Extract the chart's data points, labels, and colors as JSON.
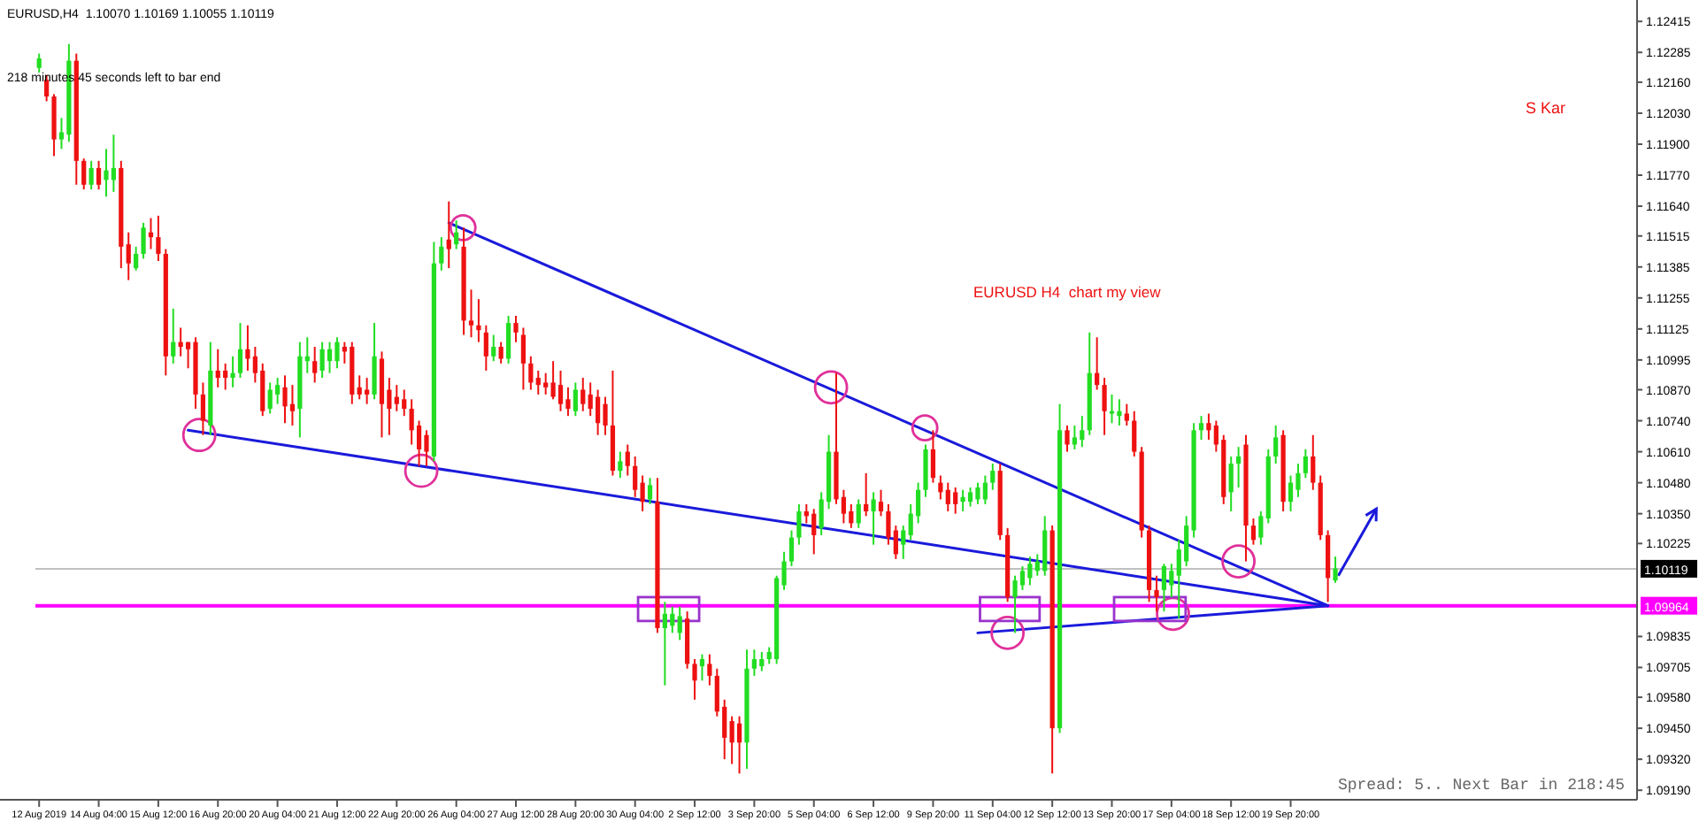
{
  "chart_data": {
    "type": "candlestick",
    "annotations": [
      "EURUSD,H4  1.10070 1.10169 1.10055 1.10119",
      "218 minutes 45 seconds left to bar end",
      "EURUSD H4  chart my view",
      "S Kar",
      "Spread: 5.. Next Bar in 218:45"
    ],
    "categories": [
      "12 Aug 2019",
      null,
      null,
      null,
      null,
      null,
      null,
      null,
      "14 Aug 04:00",
      null,
      null,
      null,
      null,
      null,
      null,
      null,
      "15 Aug 12:00",
      null,
      null,
      null,
      null,
      null,
      null,
      null,
      "16 Aug 20:00",
      null,
      null,
      null,
      null,
      null,
      null,
      null,
      "20 Aug 04:00",
      null,
      null,
      null,
      null,
      null,
      null,
      null,
      "21 Aug 12:00",
      null,
      null,
      null,
      null,
      null,
      null,
      null,
      "22 Aug 20:00",
      null,
      null,
      null,
      null,
      null,
      null,
      null,
      "26 Aug 04:00",
      null,
      null,
      null,
      null,
      null,
      null,
      null,
      "27 Aug 12:00",
      null,
      null,
      null,
      null,
      null,
      null,
      null,
      "28 Aug 20:00",
      null,
      null,
      null,
      null,
      null,
      null,
      null,
      "30 Aug 04:00",
      null,
      null,
      null,
      null,
      null,
      null,
      null,
      "2 Sep 12:00",
      null,
      null,
      null,
      null,
      null,
      null,
      null,
      "3 Sep 20:00",
      null,
      null,
      null,
      null,
      null,
      null,
      null,
      "5 Sep 04:00",
      null,
      null,
      null,
      null,
      null,
      null,
      null,
      "6 Sep 12:00",
      null,
      null,
      null,
      null,
      null,
      null,
      null,
      "9 Sep 20:00",
      null,
      null,
      null,
      null,
      null,
      null,
      null,
      "11 Sep 04:00",
      null,
      null,
      null,
      null,
      null,
      null,
      null,
      "12 Sep 12:00",
      null,
      null,
      null,
      null,
      null,
      null,
      null,
      "13 Sep 20:00",
      null,
      null,
      null,
      null,
      null,
      null,
      null,
      "17 Sep 04:00",
      null,
      null,
      null,
      null,
      null,
      null,
      null,
      "18 Sep 12:00",
      null,
      null,
      null,
      null,
      null,
      null,
      null,
      "19 Sep 20:00",
      null,
      null,
      null,
      null,
      null,
      null,
      null,
      null,
      null,
      null,
      null,
      null,
      null,
      null,
      null,
      null,
      null,
      null,
      null,
      null,
      null,
      null,
      null,
      null,
      null,
      null,
      null,
      null,
      null,
      null,
      null,
      null,
      null,
      null,
      null,
      null,
      null,
      null,
      null,
      null,
      null,
      null,
      null,
      null,
      null,
      null
    ],
    "ylim": [
      1.0915,
      1.1249
    ],
    "yticks": [
      1.12415,
      1.12285,
      {
        "value": 1.1216,
        "label": "1.12160"
      },
      {
        "value": 1.1203,
        "label": "1.12030"
      },
      {
        "value": 1.119,
        "label": "1.11900"
      },
      {
        "value": 1.1177,
        "label": "1.11770"
      },
      {
        "value": 1.1164,
        "label": "1.11640"
      },
      1.11515,
      1.11385,
      1.11255,
      1.11125,
      1.10995,
      {
        "value": 1.1087,
        "label": "1.10870"
      },
      {
        "value": 1.1074,
        "label": "1.10740"
      },
      {
        "value": 1.1061,
        "label": "1.10610"
      },
      {
        "value": 1.1048,
        "label": "1.10480"
      },
      {
        "value": 1.1035,
        "label": "1.10350"
      },
      1.10225,
      1.09835,
      1.09705,
      {
        "value": 1.0958,
        "label": "1.09580"
      },
      {
        "value": 1.0945,
        "label": "1.09450"
      },
      {
        "value": 1.0932,
        "label": "1.09320"
      },
      {
        "value": 1.0919,
        "label": "1.09190"
      }
    ],
    "ref_lines": [
      {
        "axis": "y",
        "value": 1.10119,
        "label": "1.10119",
        "color": "#c0c0c0"
      },
      {
        "axis": "y",
        "value": 1.09964,
        "label": "1.09964",
        "color": "#ff00ff"
      }
    ],
    "series": [
      {
        "colors": [
          "#22dd22",
          "#ee1111",
          "#ee1111",
          "#22dd22",
          "#22dd22",
          "#ee1111",
          "#ee1111",
          "#22dd22",
          "#ee1111",
          "#22dd22",
          "#22dd22",
          "#ee1111",
          "#ee1111",
          "#22dd22",
          "#22dd22",
          "#ee1111",
          "#ee1111",
          "#ee1111",
          "#22dd22",
          "#ee1111",
          "#ee1111",
          "#ee1111",
          "#ee1111",
          "#22dd22",
          "#ee1111",
          "#ee1111",
          "#22dd22",
          "#22dd22",
          "#ee1111",
          "#ee1111",
          "#ee1111",
          "#22dd22",
          "#22dd22",
          "#ee1111",
          "#ee1111",
          "#22dd22",
          "#22dd22",
          "#ee1111",
          "#22dd22",
          "#22dd22",
          "#22dd22",
          "#ee1111",
          "#ee1111",
          "#ee1111",
          "#ee1111",
          "#22dd22",
          "#ee1111",
          "#ee1111",
          "#ee1111",
          "#ee1111",
          "#ee1111",
          "#ee1111",
          "#ee1111",
          "#22dd22",
          "#22dd22",
          "#ee1111",
          "#22dd22",
          "#ee1111",
          "#ee1111",
          "#ee1111",
          "#ee1111",
          "#22dd22",
          "#ee1111",
          "#22dd22",
          "#ee1111",
          "#ee1111",
          "#ee1111",
          "#ee1111",
          "#ee1111",
          "#ee1111",
          "#ee1111",
          "#ee1111",
          "#22dd22",
          "#ee1111",
          "#ee1111",
          "#ee1111",
          "#ee1111",
          "#ee1111",
          "#22dd22",
          "#ee1111",
          "#ee1111",
          "#ee1111",
          "#22dd22",
          "#ee1111",
          "#22dd22",
          "#22dd22",
          "#22dd22",
          "#ee1111",
          "#ee1111",
          "#22dd22",
          "#ee1111",
          "#ee1111",
          "#ee1111",
          "#ee1111",
          "#ee1111",
          "#22dd22",
          "#22dd22",
          "#22dd22",
          "#22dd22",
          "#22dd22",
          "#22dd22",
          "#22dd22",
          "#22dd22",
          "#ee1111",
          "#ee1111",
          "#22dd22",
          "#22dd22",
          "#ee1111",
          "#ee1111",
          "#ee1111",
          "#22dd22",
          "#ee1111",
          "#22dd22",
          "#ee1111",
          "#ee1111",
          "#ee1111",
          "#22dd22",
          "#22dd22",
          "#22dd22",
          "#22dd22",
          "#ee1111",
          "#ee1111",
          "#ee1111",
          "#ee1111",
          "#22dd22",
          "#22dd22",
          "#22dd22",
          "#22dd22",
          "#22dd22",
          "#ee1111",
          "#ee1111",
          "#22dd22",
          "#22dd22",
          "#22dd22",
          "#22dd22",
          "#22dd22",
          "#ee1111",
          "#22dd22",
          "#ee1111",
          "#22dd22",
          "#22dd22",
          "#22dd22",
          "#ee1111",
          "#ee1111",
          "#22dd22",
          "#22dd22",
          "#ee1111",
          "#ee1111",
          "#ee1111",
          "#ee1111",
          "#ee1111",
          "#22dd22",
          "#22dd22",
          "#22dd22",
          "#22dd22",
          "#22dd22",
          "#22dd22",
          "#ee1111",
          "#ee1111",
          "#ee1111",
          "#22dd22",
          "#22dd22",
          "#ee1111",
          "#ee1111",
          "#22dd22",
          "#22dd22",
          "#22dd22",
          "#ee1111",
          "#22dd22",
          "#22dd22",
          "#22dd22",
          "#ee1111",
          "#ee1111",
          "#ee1111",
          "#22dd22",
          null,
          null,
          null,
          null,
          null,
          null,
          null,
          null,
          null,
          null,
          null,
          null,
          null,
          null,
          null,
          null,
          null,
          null,
          null,
          null,
          null,
          null,
          null,
          null,
          null,
          null,
          null,
          null,
          null,
          null,
          null,
          null,
          null,
          null,
          null,
          null,
          null,
          null,
          null,
          null
        ],
        "ohlc": [
          [
            1.1222,
            1.1228,
            1.122,
            1.1226
          ],
          [
            1.1217,
            1.1219,
            1.1208,
            1.121
          ],
          [
            1.121,
            1.1211,
            1.1185,
            1.1192
          ],
          [
            1.1192,
            1.1201,
            1.1188,
            1.1195
          ],
          [
            1.1194,
            1.1232,
            1.1191,
            1.1225
          ],
          [
            1.1225,
            1.1228,
            1.1173,
            1.1183
          ],
          [
            1.1183,
            1.1184,
            1.1171,
            1.1173
          ],
          [
            1.1173,
            1.1183,
            1.1171,
            1.118
          ],
          [
            1.118,
            1.1183,
            1.1171,
            1.1173
          ],
          [
            1.1175,
            1.1188,
            1.1168,
            1.1179
          ],
          [
            1.1175,
            1.1194,
            1.117,
            1.118
          ],
          [
            1.118,
            1.1183,
            1.1138,
            1.1147
          ],
          [
            1.1148,
            1.1153,
            1.1133,
            1.114
          ],
          [
            1.1138,
            1.1147,
            1.1137,
            1.1144
          ],
          [
            1.1144,
            1.1157,
            1.1142,
            1.1155
          ],
          [
            1.1153,
            1.1159,
            1.1146,
            1.1151
          ],
          [
            1.1151,
            1.116,
            1.1141,
            1.1144
          ],
          [
            1.1144,
            1.1146,
            1.1093,
            1.1101
          ],
          [
            1.1101,
            1.1121,
            1.1098,
            1.1107
          ],
          [
            1.1107,
            1.1113,
            1.1101,
            1.1105
          ],
          [
            1.1107,
            1.1107,
            1.1096,
            1.1104
          ],
          [
            1.1107,
            1.1109,
            1.1079,
            1.1085
          ],
          [
            1.1085,
            1.109,
            1.1068,
            1.1074
          ],
          [
            1.1072,
            1.1107,
            1.1068,
            1.1095
          ],
          [
            1.1095,
            1.1104,
            1.1088,
            1.1092
          ],
          [
            1.1095,
            1.1098,
            1.1087,
            1.1092
          ],
          [
            1.1092,
            1.1101,
            1.1088,
            1.1094
          ],
          [
            1.1094,
            1.1115,
            1.1092,
            1.1104
          ],
          [
            1.1104,
            1.1114,
            1.1095,
            1.11
          ],
          [
            1.1101,
            1.1105,
            1.109,
            1.1094
          ],
          [
            1.1095,
            1.1098,
            1.1076,
            1.1078
          ],
          [
            1.1079,
            1.109,
            1.1077,
            1.1087
          ],
          [
            1.1085,
            1.1092,
            1.1081,
            1.1089
          ],
          [
            1.1088,
            1.1093,
            1.1073,
            1.108
          ],
          [
            1.1081,
            1.1089,
            1.1072,
            1.1078
          ],
          [
            1.1079,
            1.1107,
            1.1067,
            1.1101
          ],
          [
            1.1099,
            1.1109,
            1.1094,
            1.1101
          ],
          [
            1.1099,
            1.1105,
            1.109,
            1.1094
          ],
          [
            1.1095,
            1.1107,
            1.1092,
            1.1104
          ],
          [
            1.1099,
            1.1107,
            1.1094,
            1.1104
          ],
          [
            1.1099,
            1.1109,
            1.1096,
            1.1107
          ],
          [
            1.1105,
            1.1107,
            1.1098,
            1.1103
          ],
          [
            1.1105,
            1.1107,
            1.1081,
            1.1085
          ],
          [
            1.1088,
            1.1093,
            1.1083,
            1.1085
          ],
          [
            1.1087,
            1.1092,
            1.1081,
            1.1085
          ],
          [
            1.1085,
            1.1115,
            1.1083,
            1.1101
          ],
          [
            1.11,
            1.1103,
            1.1067,
            1.1081
          ],
          [
            1.1087,
            1.1092,
            1.1068,
            1.1079
          ],
          [
            1.1084,
            1.1089,
            1.1078,
            1.1081
          ],
          [
            1.1083,
            1.1087,
            1.1076,
            1.1079
          ],
          [
            1.1079,
            1.1083,
            1.1064,
            1.107
          ],
          [
            1.1072,
            1.1074,
            1.1055,
            1.1062
          ],
          [
            1.1068,
            1.107,
            1.1055,
            1.1061
          ],
          [
            1.1059,
            1.1149,
            1.1057,
            1.114
          ],
          [
            1.114,
            1.1151,
            1.1137,
            1.1147
          ],
          [
            1.115,
            1.1166,
            1.1138,
            1.1146
          ],
          [
            1.1148,
            1.1158,
            1.1146,
            1.1153
          ],
          [
            1.1147,
            1.1155,
            1.111,
            1.1116
          ],
          [
            1.1116,
            1.1129,
            1.1109,
            1.1114
          ],
          [
            1.1114,
            1.1125,
            1.1107,
            1.1112
          ],
          [
            1.1111,
            1.1114,
            1.1095,
            1.1101
          ],
          [
            1.1101,
            1.111,
            1.1099,
            1.1105
          ],
          [
            1.1105,
            1.1107,
            1.1098,
            1.11
          ],
          [
            1.11,
            1.1118,
            1.1098,
            1.1115
          ],
          [
            1.1115,
            1.1118,
            1.1107,
            1.1111
          ],
          [
            1.111,
            1.1113,
            1.1087,
            1.1098
          ],
          [
            1.1098,
            1.1101,
            1.1087,
            1.109
          ],
          [
            1.1092,
            1.1095,
            1.1085,
            1.1089
          ],
          [
            1.109,
            1.1094,
            1.1085,
            1.1088
          ],
          [
            1.109,
            1.1099,
            1.1083,
            1.1084
          ],
          [
            1.1089,
            1.1095,
            1.1078,
            1.1081
          ],
          [
            1.1083,
            1.1088,
            1.1076,
            1.1079
          ],
          [
            1.1078,
            1.109,
            1.1076,
            1.1087
          ],
          [
            1.1087,
            1.1092,
            1.1078,
            1.1081
          ],
          [
            1.1085,
            1.109,
            1.1076,
            1.1079
          ],
          [
            1.1084,
            1.1087,
            1.1068,
            1.1073
          ],
          [
            1.1081,
            1.1084,
            1.1068,
            1.1072
          ],
          [
            1.1072,
            1.1095,
            1.1051,
            1.1053
          ],
          [
            1.1053,
            1.1061,
            1.105,
            1.1057
          ],
          [
            1.1061,
            1.1064,
            1.1051,
            1.1055
          ],
          [
            1.1055,
            1.1059,
            1.1042,
            1.1045
          ],
          [
            1.1048,
            1.1051,
            1.1036,
            1.104
          ],
          [
            1.1041,
            1.105,
            1.1039,
            1.1047
          ],
          [
            1.104,
            1.105,
            1.0985,
            1.0987
          ],
          [
            1.0987,
            1.0998,
            1.0963,
            1.0993
          ],
          [
            1.0988,
            1.0996,
            1.0985,
            1.0993
          ],
          [
            1.0985,
            1.0996,
            1.0982,
            1.0992
          ],
          [
            1.0991,
            1.0994,
            1.097,
            1.0972
          ],
          [
            1.0972,
            1.0974,
            1.0957,
            1.0965
          ],
          [
            1.0971,
            1.0976,
            1.0965,
            1.0974
          ],
          [
            1.0972,
            1.0976,
            1.0963,
            1.0967
          ],
          [
            1.0967,
            1.097,
            1.095,
            1.0952
          ],
          [
            1.0954,
            1.0957,
            1.0932,
            1.0941
          ],
          [
            1.0948,
            1.095,
            1.093,
            1.0939
          ],
          [
            1.0947,
            1.095,
            1.0926,
            1.0939
          ],
          [
            1.0939,
            1.0978,
            1.0928,
            1.097
          ],
          [
            1.097,
            1.0978,
            1.0967,
            1.0974
          ],
          [
            1.0971,
            1.0977,
            1.0969,
            1.0974
          ],
          [
            1.0974,
            1.0979,
            1.0972,
            1.0977
          ],
          [
            1.0974,
            1.1009,
            1.0972,
            1.1008
          ],
          [
            1.1005,
            1.1019,
            1.1003,
            1.1015
          ],
          [
            1.1015,
            1.1028,
            1.1013,
            1.1025
          ],
          [
            1.1025,
            1.1039,
            1.1022,
            1.1036
          ],
          [
            1.1036,
            1.1039,
            1.1031,
            1.1034
          ],
          [
            1.1035,
            1.1037,
            1.1018,
            1.1026
          ],
          [
            1.1029,
            1.1044,
            1.1026,
            1.1041
          ],
          [
            1.104,
            1.1068,
            1.1037,
            1.1061
          ],
          [
            1.1061,
            1.1094,
            1.1039,
            1.1041
          ],
          [
            1.1042,
            1.1045,
            1.1031,
            1.1035
          ],
          [
            1.1036,
            1.1039,
            1.1029,
            1.1031
          ],
          [
            1.1031,
            1.1041,
            1.1029,
            1.1039
          ],
          [
            1.1039,
            1.1052,
            1.1034,
            1.1036
          ],
          [
            1.1036,
            1.1044,
            1.1022,
            1.1041
          ],
          [
            1.104,
            1.1045,
            1.1034,
            1.1036
          ],
          [
            1.1036,
            1.1039,
            1.1022,
            1.1025
          ],
          [
            1.1028,
            1.103,
            1.1016,
            1.1018
          ],
          [
            1.1022,
            1.103,
            1.1016,
            1.1028
          ],
          [
            1.1026,
            1.1039,
            1.1024,
            1.1035
          ],
          [
            1.1034,
            1.1048,
            1.1031,
            1.1045
          ],
          [
            1.1045,
            1.1064,
            1.1042,
            1.1062
          ],
          [
            1.1062,
            1.107,
            1.1048,
            1.105
          ],
          [
            1.1048,
            1.1051,
            1.1041,
            1.1044
          ],
          [
            1.1045,
            1.1048,
            1.1036,
            1.1039
          ],
          [
            1.1044,
            1.1046,
            1.1035,
            1.1039
          ],
          [
            1.104,
            1.1045,
            1.1036,
            1.1042
          ],
          [
            1.104,
            1.1046,
            1.1038,
            1.1044
          ],
          [
            1.1041,
            1.1048,
            1.1039,
            1.1046
          ],
          [
            1.1041,
            1.1051,
            1.1039,
            1.1048
          ],
          [
            1.1048,
            1.1056,
            1.1045,
            1.1053
          ],
          [
            1.1053,
            1.1056,
            1.1024,
            1.1026
          ],
          [
            1.1026,
            1.1029,
            1.0998,
            1.1
          ],
          [
            1.1,
            1.1009,
            1.0985,
            1.1007
          ],
          [
            1.1005,
            1.1013,
            1.1003,
            1.1011
          ],
          [
            1.1008,
            1.1017,
            1.1005,
            1.1014
          ],
          [
            1.1011,
            1.1018,
            1.1009,
            1.1015
          ],
          [
            1.1011,
            1.1034,
            1.1009,
            1.1028
          ],
          [
            1.1028,
            1.103,
            1.0926,
            1.0945
          ],
          [
            1.0945,
            1.1081,
            1.0943,
            1.107
          ],
          [
            1.107,
            1.1072,
            1.1061,
            1.1064
          ],
          [
            1.1064,
            1.1072,
            1.1062,
            1.1067
          ],
          [
            1.1066,
            1.1076,
            1.1063,
            1.107
          ],
          [
            1.107,
            1.1111,
            1.1068,
            1.1094
          ],
          [
            1.1094,
            1.1109,
            1.1087,
            1.1089
          ],
          [
            1.1089,
            1.1092,
            1.1068,
            1.1078
          ],
          [
            1.1077,
            1.1085,
            1.1073,
            1.1078
          ],
          [
            1.1076,
            1.1083,
            1.1072,
            1.1078
          ],
          [
            1.1077,
            1.1081,
            1.1072,
            1.1074
          ],
          [
            1.1074,
            1.1078,
            1.1059,
            1.1061
          ],
          [
            1.1061,
            1.1063,
            1.1025,
            1.1028
          ],
          [
            1.1028,
            1.103,
            1.0998,
            1.1003
          ],
          [
            1.1003,
            1.1009,
            1.0994,
            1.1
          ],
          [
            1.1003,
            1.1014,
            1.0994,
            1.1013
          ],
          [
            1.1005,
            1.1014,
            1.1,
            1.1011
          ],
          [
            1.1009,
            1.1024,
            1.0991,
            1.102
          ],
          [
            1.1015,
            1.1034,
            1.1013,
            1.103
          ],
          [
            1.1028,
            1.1073,
            1.1025,
            1.107
          ],
          [
            1.107,
            1.1076,
            1.1066,
            1.1073
          ],
          [
            1.1073,
            1.1077,
            1.1066,
            1.107
          ],
          [
            1.1072,
            1.1074,
            1.1061,
            1.1064
          ],
          [
            1.1066,
            1.1068,
            1.1039,
            1.1042
          ],
          [
            1.1044,
            1.1059,
            1.1036,
            1.1056
          ],
          [
            1.1056,
            1.1063,
            1.1046,
            1.1059
          ],
          [
            1.1064,
            1.1068,
            1.1015,
            1.103
          ],
          [
            1.103,
            1.1033,
            1.1022,
            1.1024
          ],
          [
            1.1025,
            1.1036,
            1.1022,
            1.1034
          ],
          [
            1.1033,
            1.1062,
            1.1031,
            1.1059
          ],
          [
            1.1059,
            1.1072,
            1.1056,
            1.1067
          ],
          [
            1.1068,
            1.107,
            1.1036,
            1.104
          ],
          [
            1.104,
            1.1051,
            1.1036,
            1.1048
          ],
          [
            1.1045,
            1.1056,
            1.1042,
            1.1052
          ],
          [
            1.1052,
            1.1062,
            1.105,
            1.1059
          ],
          [
            1.1059,
            1.1068,
            1.1045,
            1.1048
          ],
          [
            1.1048,
            1.1051,
            1.1024,
            1.1026
          ],
          [
            1.1026,
            1.1028,
            1.0998,
            1.1008
          ],
          [
            1.1007,
            1.1017,
            1.1006,
            1.1012
          ],
          null,
          null,
          null,
          null,
          null,
          null,
          null,
          null,
          null,
          null,
          null,
          null,
          null,
          null,
          null,
          null,
          null,
          null,
          null,
          null,
          null,
          null,
          null,
          null,
          null,
          null,
          null,
          null,
          null,
          null,
          null,
          null,
          null,
          null,
          null,
          null,
          null,
          null,
          null,
          null
        ]
      },
      {
        "type": "line",
        "color": "#1a1adb",
        "values": [
          null,
          null,
          null,
          null,
          null,
          null,
          null,
          null,
          null,
          null,
          null,
          null,
          null,
          null,
          null,
          null,
          null,
          null,
          null,
          null,
          null,
          null,
          null,
          null,
          null,
          null,
          null,
          null,
          null,
          null,
          null,
          null,
          null,
          null,
          null,
          null,
          null,
          null,
          null,
          null,
          null,
          null,
          null,
          null,
          null,
          null,
          null,
          null,
          null,
          null,
          null,
          null,
          null,
          null,
          null,
          1.1157,
          null,
          null,
          null,
          null,
          null,
          null,
          null,
          null,
          null,
          null,
          null,
          null,
          null,
          null,
          null,
          null,
          null,
          null,
          null,
          null,
          null,
          null,
          null,
          null,
          null,
          null,
          null,
          null,
          null,
          null,
          null,
          null,
          null,
          null,
          null,
          null,
          null,
          null,
          null,
          null,
          null,
          null,
          null,
          null,
          null,
          null,
          null,
          null,
          null,
          null,
          null,
          null,
          null,
          null,
          null,
          null,
          null,
          null,
          null,
          null,
          null,
          null,
          null,
          null,
          null,
          null,
          null,
          null,
          null,
          null,
          null,
          null,
          null,
          null,
          null,
          null,
          null,
          null,
          null,
          null,
          null,
          null,
          null,
          null,
          null,
          null,
          null,
          null,
          null,
          null,
          null,
          null,
          null,
          null,
          null,
          null,
          null,
          null,
          null,
          null,
          null,
          null,
          null,
          null,
          null,
          null,
          null,
          null,
          null,
          null,
          null,
          null,
          null,
          null,
          null,
          null,
          null,
          1.09964,
          null,
          null,
          null,
          null,
          null,
          null,
          null,
          null,
          null,
          null,
          null,
          null,
          null,
          null,
          null,
          null,
          null,
          null,
          null,
          null,
          null,
          null,
          null,
          null,
          null,
          null,
          null,
          null,
          null,
          null,
          null,
          null,
          null,
          null,
          null,
          null,
          null,
          null,
          null,
          null,
          null
        ]
      },
      {
        "type": "line",
        "color": "#1a1adb",
        "values": [
          null,
          null,
          null,
          null,
          null,
          null,
          null,
          null,
          null,
          null,
          null,
          null,
          null,
          null,
          null,
          null,
          null,
          null,
          null,
          null,
          1.107,
          null,
          null,
          null,
          null,
          null,
          null,
          null,
          null,
          null,
          null,
          null,
          null,
          null,
          null,
          null,
          null,
          null,
          null,
          null,
          null,
          null,
          null,
          null,
          null,
          null,
          null,
          null,
          null,
          null,
          null,
          null,
          null,
          null,
          null,
          null,
          null,
          null,
          null,
          null,
          null,
          null,
          null,
          null,
          null,
          null,
          null,
          null,
          null,
          null,
          null,
          null,
          null,
          null,
          null,
          null,
          null,
          null,
          null,
          null,
          null,
          null,
          null,
          null,
          null,
          null,
          null,
          null,
          null,
          null,
          null,
          null,
          null,
          null,
          null,
          null,
          null,
          null,
          null,
          null,
          null,
          null,
          null,
          null,
          null,
          null,
          null,
          null,
          null,
          null,
          null,
          null,
          null,
          null,
          null,
          null,
          null,
          null,
          null,
          null,
          null,
          null,
          null,
          null,
          null,
          null,
          null,
          null,
          null,
          null,
          null,
          null,
          null,
          null,
          null,
          null,
          null,
          null,
          null,
          null,
          null,
          null,
          null,
          null,
          null,
          null,
          null,
          null,
          null,
          null,
          null,
          null,
          null,
          null,
          null,
          null,
          null,
          null,
          null,
          null,
          null,
          null,
          null,
          null,
          null,
          null,
          null,
          null,
          null,
          null,
          null,
          null,
          null,
          1.09964,
          null,
          null,
          null,
          null,
          null,
          null,
          null,
          null,
          null,
          null,
          null,
          null,
          null,
          null,
          null,
          null,
          null,
          null,
          null,
          null,
          null,
          null,
          null,
          null,
          null,
          null,
          null,
          null,
          null,
          null,
          null,
          null,
          null,
          null,
          null,
          null,
          null,
          null,
          null,
          null,
          null
        ]
      },
      {
        "type": "line",
        "color": "#1a1adb",
        "values": [
          null,
          null,
          null,
          null,
          null,
          null,
          null,
          null,
          null,
          null,
          null,
          null,
          null,
          null,
          null,
          null,
          null,
          null,
          null,
          null,
          null,
          null,
          null,
          null,
          null,
          null,
          null,
          null,
          null,
          null,
          null,
          null,
          null,
          null,
          null,
          null,
          null,
          null,
          null,
          null,
          null,
          null,
          null,
          null,
          null,
          null,
          null,
          null,
          null,
          null,
          null,
          null,
          null,
          null,
          null,
          null,
          null,
          null,
          null,
          null,
          null,
          null,
          null,
          null,
          null,
          null,
          null,
          null,
          null,
          null,
          null,
          null,
          null,
          null,
          null,
          null,
          null,
          null,
          null,
          null,
          null,
          null,
          null,
          null,
          null,
          null,
          null,
          null,
          null,
          null,
          null,
          null,
          null,
          null,
          null,
          null,
          null,
          null,
          null,
          null,
          null,
          null,
          null,
          null,
          null,
          null,
          null,
          null,
          null,
          null,
          null,
          null,
          null,
          null,
          null,
          null,
          null,
          null,
          null,
          null,
          null,
          null,
          null,
          null,
          null,
          null,
          1.0985,
          null,
          null,
          null,
          null,
          null,
          null,
          null,
          null,
          null,
          null,
          null,
          null,
          null,
          null,
          null,
          null,
          null,
          null,
          null,
          null,
          null,
          null,
          null,
          null,
          null,
          null,
          null,
          null,
          null,
          null,
          null,
          null,
          null,
          null,
          null,
          null,
          null,
          null,
          null,
          null,
          null,
          null,
          null,
          null,
          null,
          null,
          1.09964,
          null,
          null,
          null,
          null,
          null,
          null,
          null,
          null,
          null,
          null,
          null,
          null,
          null,
          null,
          null,
          null,
          null,
          null,
          null,
          null,
          null,
          null,
          null,
          null,
          null,
          null,
          null,
          null,
          null,
          null,
          null,
          null,
          null,
          null,
          null,
          null,
          null,
          null,
          null,
          null,
          null
        ]
      }
    ]
  }
}
